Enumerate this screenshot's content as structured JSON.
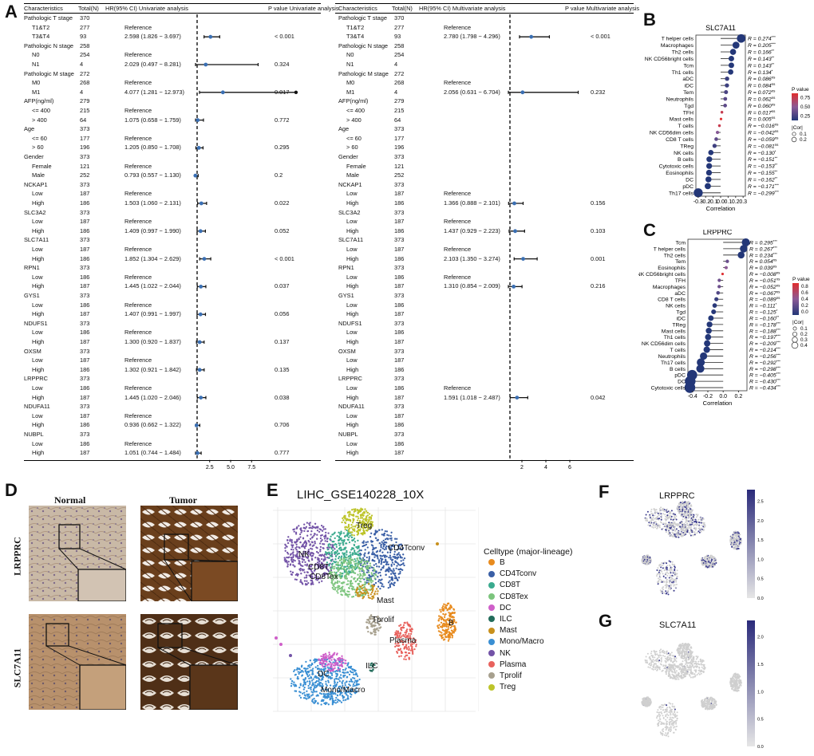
{
  "panels": {
    "A": "A",
    "B": "B",
    "C": "C",
    "D": "D",
    "E": "E",
    "F": "F",
    "G": "G"
  },
  "forest": {
    "uni": {
      "headers": [
        "Characteristics",
        "Total(N)",
        "HR(95% CI) Univariate analysis",
        "P value Univariate analysis"
      ],
      "ticks": [
        "2.5",
        "5.0",
        "7.5"
      ],
      "rows": [
        [
          "Pathologic T stage",
          "370",
          "",
          ""
        ],
        [
          "T1&T2",
          "277",
          "Reference",
          ""
        ],
        [
          "T3&T4",
          "93",
          "2.598 (1.826 − 3.697)",
          "< 0.001"
        ],
        [
          "Pathologic N stage",
          "258",
          "",
          ""
        ],
        [
          "N0",
          "254",
          "Reference",
          ""
        ],
        [
          "N1",
          "4",
          "2.029 (0.497 − 8.281)",
          "0.324"
        ],
        [
          "Pathologic M stage",
          "272",
          "",
          ""
        ],
        [
          "M0",
          "268",
          "Reference",
          ""
        ],
        [
          "M1",
          "4",
          "4.077 (1.281 − 12.973)",
          "0.017"
        ],
        [
          "AFP(ng/ml)",
          "279",
          "",
          ""
        ],
        [
          "<= 400",
          "215",
          "Reference",
          ""
        ],
        [
          "> 400",
          "64",
          "1.075 (0.658 − 1.759)",
          "0.772"
        ],
        [
          "Age",
          "373",
          "",
          ""
        ],
        [
          "<= 60",
          "177",
          "Reference",
          ""
        ],
        [
          "> 60",
          "196",
          "1.205 (0.850 − 1.708)",
          "0.295"
        ],
        [
          "Gender",
          "373",
          "",
          ""
        ],
        [
          "Female",
          "121",
          "Reference",
          ""
        ],
        [
          "Male",
          "252",
          "0.793 (0.557 − 1.130)",
          "0.2"
        ],
        [
          "NCKAP1",
          "373",
          "",
          ""
        ],
        [
          "Low",
          "187",
          "Reference",
          ""
        ],
        [
          "High",
          "186",
          "1.503 (1.060 − 2.131)",
          "0.022"
        ],
        [
          "SLC3A2",
          "373",
          "",
          ""
        ],
        [
          "Low",
          "187",
          "Reference",
          ""
        ],
        [
          "High",
          "186",
          "1.409 (0.997 − 1.990)",
          "0.052"
        ],
        [
          "SLC7A11",
          "373",
          "",
          ""
        ],
        [
          "Low",
          "187",
          "Reference",
          ""
        ],
        [
          "High",
          "186",
          "1.852 (1.304 − 2.629)",
          "< 0.001"
        ],
        [
          "RPN1",
          "373",
          "",
          ""
        ],
        [
          "Low",
          "186",
          "Reference",
          ""
        ],
        [
          "High",
          "187",
          "1.445 (1.022 − 2.044)",
          "0.037"
        ],
        [
          "GYS1",
          "373",
          "",
          ""
        ],
        [
          "Low",
          "186",
          "Reference",
          ""
        ],
        [
          "High",
          "187",
          "1.407 (0.991 − 1.997)",
          "0.056"
        ],
        [
          "NDUFS1",
          "373",
          "",
          ""
        ],
        [
          "Low",
          "186",
          "Reference",
          ""
        ],
        [
          "High",
          "187",
          "1.300 (0.920 − 1.837)",
          "0.137"
        ],
        [
          "OXSM",
          "373",
          "",
          ""
        ],
        [
          "Low",
          "187",
          "Reference",
          ""
        ],
        [
          "High",
          "186",
          "1.302 (0.921 − 1.842)",
          "0.135"
        ],
        [
          "LRPPRC",
          "373",
          "",
          ""
        ],
        [
          "Low",
          "186",
          "Reference",
          ""
        ],
        [
          "High",
          "187",
          "1.445 (1.020 − 2.046)",
          "0.038"
        ],
        [
          "NDUFA11",
          "373",
          "",
          ""
        ],
        [
          "Low",
          "187",
          "Reference",
          ""
        ],
        [
          "High",
          "186",
          "0.936 (0.662 − 1.322)",
          "0.706"
        ],
        [
          "NUBPL",
          "373",
          "",
          ""
        ],
        [
          "Low",
          "186",
          "Reference",
          ""
        ],
        [
          "High",
          "187",
          "1.051 (0.744 − 1.484)",
          "0.777"
        ]
      ]
    },
    "multi": {
      "headers": [
        "Characteristics",
        "Total(N)",
        "HR(95% CI) Multivariate analysis",
        "P value Multivariate analysis"
      ],
      "ticks": [
        "2",
        "4",
        "6"
      ],
      "rows": [
        [
          "Pathologic T stage",
          "370",
          "",
          ""
        ],
        [
          "T1&T2",
          "277",
          "Reference",
          ""
        ],
        [
          "T3&T4",
          "93",
          "2.780 (1.798 − 4.296)",
          "< 0.001"
        ],
        [
          "Pathologic N stage",
          "258",
          "",
          ""
        ],
        [
          "N0",
          "254",
          "",
          ""
        ],
        [
          "N1",
          "4",
          "",
          ""
        ],
        [
          "Pathologic M stage",
          "272",
          "",
          ""
        ],
        [
          "M0",
          "268",
          "Reference",
          ""
        ],
        [
          "M1",
          "4",
          "2.056 (0.631 − 6.704)",
          "0.232"
        ],
        [
          "AFP(ng/ml)",
          "279",
          "",
          ""
        ],
        [
          "<= 400",
          "215",
          "",
          ""
        ],
        [
          "> 400",
          "64",
          "",
          ""
        ],
        [
          "Age",
          "373",
          "",
          ""
        ],
        [
          "<= 60",
          "177",
          "",
          ""
        ],
        [
          "> 60",
          "196",
          "",
          ""
        ],
        [
          "Gender",
          "373",
          "",
          ""
        ],
        [
          "Female",
          "121",
          "",
          ""
        ],
        [
          "Male",
          "252",
          "",
          ""
        ],
        [
          "NCKAP1",
          "373",
          "",
          ""
        ],
        [
          "Low",
          "187",
          "Reference",
          ""
        ],
        [
          "High",
          "186",
          "1.366 (0.888 − 2.101)",
          "0.156"
        ],
        [
          "SLC3A2",
          "373",
          "",
          ""
        ],
        [
          "Low",
          "187",
          "Reference",
          ""
        ],
        [
          "High",
          "186",
          "1.437 (0.929 − 2.223)",
          "0.103"
        ],
        [
          "SLC7A11",
          "373",
          "",
          ""
        ],
        [
          "Low",
          "187",
          "Reference",
          ""
        ],
        [
          "High",
          "186",
          "2.103 (1.350 − 3.274)",
          "0.001"
        ],
        [
          "RPN1",
          "373",
          "",
          ""
        ],
        [
          "Low",
          "186",
          "Reference",
          ""
        ],
        [
          "High",
          "187",
          "1.310 (0.854 − 2.009)",
          "0.216"
        ],
        [
          "GYS1",
          "373",
          "",
          ""
        ],
        [
          "Low",
          "186",
          "",
          ""
        ],
        [
          "High",
          "187",
          "",
          ""
        ],
        [
          "NDUFS1",
          "373",
          "",
          ""
        ],
        [
          "Low",
          "186",
          "",
          ""
        ],
        [
          "High",
          "187",
          "",
          ""
        ],
        [
          "OXSM",
          "373",
          "",
          ""
        ],
        [
          "Low",
          "187",
          "",
          ""
        ],
        [
          "High",
          "186",
          "",
          ""
        ],
        [
          "LRPPRC",
          "373",
          "",
          ""
        ],
        [
          "Low",
          "186",
          "Reference",
          ""
        ],
        [
          "High",
          "187",
          "1.591 (1.018 − 2.487)",
          "0.042"
        ],
        [
          "NDUFA11",
          "373",
          "",
          ""
        ],
        [
          "Low",
          "187",
          "",
          ""
        ],
        [
          "High",
          "186",
          "",
          ""
        ],
        [
          "NUBPL",
          "373",
          "",
          ""
        ],
        [
          "Low",
          "186",
          "",
          ""
        ],
        [
          "High",
          "187",
          "",
          ""
        ]
      ]
    }
  },
  "ihc": {
    "col1": "Normal",
    "col2": "Tumor",
    "row1": "LRPPRC",
    "row2": "SLC7A11"
  },
  "umap": {
    "title": "LIHC_GSE140228_10X",
    "legend_title": "Celltype (major-lineage)",
    "celltypes": [
      {
        "name": "B",
        "color": "#E88B1E"
      },
      {
        "name": "CD4Tconv",
        "color": "#3A5FA6"
      },
      {
        "name": "CD8T",
        "color": "#3AAA8E"
      },
      {
        "name": "CD8Tex",
        "color": "#7CC47D"
      },
      {
        "name": "DC",
        "color": "#CF5FC9"
      },
      {
        "name": "ILC",
        "color": "#236C5B"
      },
      {
        "name": "Mast",
        "color": "#C8901C"
      },
      {
        "name": "Mono/Macro",
        "color": "#3A8FD3"
      },
      {
        "name": "NK",
        "color": "#7353A7"
      },
      {
        "name": "Plasma",
        "color": "#E8625D"
      },
      {
        "name": "Tprolif",
        "color": "#A7A08E"
      },
      {
        "name": "Treg",
        "color": "#BDC42A"
      }
    ],
    "cluster_labels": [
      "Treg",
      "NK",
      "CD4Tconv",
      "CD8T",
      "CD8Tex",
      "Mast",
      "B",
      "Tprolif",
      "Plasma",
      "DC",
      "ILC",
      "Mono/Macro"
    ]
  },
  "featureplots": {
    "f_title": "LRPPRC",
    "f_ticks": [
      "0.0",
      "0.5",
      "1.0",
      "1.5",
      "2.0",
      "2.5"
    ],
    "g_title": "SLC7A11",
    "g_ticks": [
      "0.0",
      "0.5",
      "1.0",
      "1.5",
      "2.0"
    ]
  },
  "chart_data": [
    {
      "type": "scatter",
      "title": "SLC7A11",
      "xlabel": "Correlation",
      "ylabel": "",
      "xlim": [
        -0.33,
        0.33
      ],
      "xticks": [
        "-0.3",
        "-0.2",
        "-0.1",
        "0.0",
        "0.1",
        "0.2",
        "0.3"
      ],
      "legend_pv": {
        "title": "P value",
        "ticks": [
          "0.75",
          "0.50",
          "0.25"
        ]
      },
      "legend_cor": {
        "title": "|Cor|",
        "ticks": [
          "0.1",
          "0.2"
        ]
      },
      "points": [
        {
          "cell": "T helper cells",
          "r": 0.274,
          "p": 0.0001,
          "sig": "***",
          "label": "R = 0.274"
        },
        {
          "cell": "Macrophages",
          "r": 0.205,
          "p": 0.0001,
          "sig": "***",
          "label": "R = 0.205"
        },
        {
          "cell": "Th2 cells",
          "r": 0.166,
          "p": 0.001,
          "sig": "**",
          "label": "R = 0.166"
        },
        {
          "cell": "NK CD56bright cells",
          "r": 0.143,
          "p": 0.006,
          "sig": "**",
          "label": "R = 0.143"
        },
        {
          "cell": "Tcm",
          "r": 0.143,
          "p": 0.006,
          "sig": "**",
          "label": "R = 0.143"
        },
        {
          "cell": "Th1 cells",
          "r": 0.134,
          "p": 0.01,
          "sig": "*",
          "label": "R = 0.134"
        },
        {
          "cell": "aDC",
          "r": 0.086,
          "p": 0.1,
          "sig": "ns",
          "label": "R = 0.086"
        },
        {
          "cell": "iDC",
          "r": 0.084,
          "p": 0.11,
          "sig": "ns",
          "label": "R = 0.084"
        },
        {
          "cell": "Tem",
          "r": 0.072,
          "p": 0.17,
          "sig": "ns",
          "label": "R = 0.072"
        },
        {
          "cell": "Neutrophils",
          "r": 0.062,
          "p": 0.24,
          "sig": "ns",
          "label": "R = 0.062"
        },
        {
          "cell": "Tgd",
          "r": 0.06,
          "p": 0.25,
          "sig": "ns",
          "label": "R = 0.060"
        },
        {
          "cell": "TFH",
          "r": 0.017,
          "p": 0.75,
          "sig": "ns",
          "label": "R = 0.017"
        },
        {
          "cell": "Mast cells",
          "r": 0.005,
          "p": 0.92,
          "sig": "ns",
          "label": "R = 0.005"
        },
        {
          "cell": "T cells",
          "r": -0.016,
          "p": 0.76,
          "sig": "ns",
          "label": "R = −0.016"
        },
        {
          "cell": "NK CD56dim cells",
          "r": -0.042,
          "p": 0.42,
          "sig": "ns",
          "label": "R = −0.042"
        },
        {
          "cell": "CD8 T cells",
          "r": -0.059,
          "p": 0.26,
          "sig": "ns",
          "label": "R = −0.059"
        },
        {
          "cell": "TReg",
          "r": -0.081,
          "p": 0.12,
          "sig": "ns",
          "label": "R = −0.081"
        },
        {
          "cell": "NK cells",
          "r": -0.13,
          "p": 0.012,
          "sig": "*",
          "label": "R = −0.130"
        },
        {
          "cell": "B cells",
          "r": -0.151,
          "p": 0.004,
          "sig": "**",
          "label": "R = −0.151"
        },
        {
          "cell": "Cytotoxic cells",
          "r": -0.153,
          "p": 0.003,
          "sig": "**",
          "label": "R = −0.153"
        },
        {
          "cell": "Eosinophils",
          "r": -0.155,
          "p": 0.003,
          "sig": "**",
          "label": "R = −0.155"
        },
        {
          "cell": "DC",
          "r": -0.162,
          "p": 0.002,
          "sig": "**",
          "label": "R = −0.162"
        },
        {
          "cell": "pDC",
          "r": -0.171,
          "p": 0.0009,
          "sig": "***",
          "label": "R = −0.171"
        },
        {
          "cell": "Th17 cells",
          "r": -0.299,
          "p": 0.0001,
          "sig": "***",
          "label": "R = −0.299"
        }
      ]
    },
    {
      "type": "scatter",
      "title": "LRPPRC",
      "xlabel": "Correlation",
      "ylabel": "",
      "xlim": [
        -0.46,
        0.31
      ],
      "xticks": [
        "-0.4",
        "-0.2",
        "0.0",
        "0.2"
      ],
      "legend_pv": {
        "title": "P value",
        "ticks": [
          "0.8",
          "0.6",
          "0.4",
          "0.2",
          "0.0"
        ]
      },
      "legend_cor": {
        "title": "|Cor|",
        "ticks": [
          "0.1",
          "0.2",
          "0.3",
          "0.4"
        ]
      },
      "points": [
        {
          "cell": "Tcm",
          "r": 0.295,
          "p": 0.0001,
          "sig": "***",
          "label": "R = 0.295"
        },
        {
          "cell": "T helper cells",
          "r": 0.267,
          "p": 0.0001,
          "sig": "***",
          "label": "R = 0.267"
        },
        {
          "cell": "Th2 cells",
          "r": 0.234,
          "p": 0.0001,
          "sig": "***",
          "label": "R = 0.234"
        },
        {
          "cell": "Tem",
          "r": 0.054,
          "p": 0.3,
          "sig": "ns",
          "label": "R = 0.054"
        },
        {
          "cell": "Eosinophils",
          "r": 0.039,
          "p": 0.45,
          "sig": "ns",
          "label": "R = 0.039"
        },
        {
          "cell": "NK CD56bright cells",
          "r": -0.008,
          "p": 0.88,
          "sig": "ns",
          "label": "R = −0.008"
        },
        {
          "cell": "TFH",
          "r": -0.051,
          "p": 0.33,
          "sig": "ns",
          "label": "R = −0.051"
        },
        {
          "cell": "Macrophages",
          "r": -0.052,
          "p": 0.32,
          "sig": "ns",
          "label": "R = −0.052"
        },
        {
          "cell": "aDC",
          "r": -0.067,
          "p": 0.2,
          "sig": "ns",
          "label": "R = −0.067"
        },
        {
          "cell": "CD8 T cells",
          "r": -0.089,
          "p": 0.09,
          "sig": "ns",
          "label": "R = −0.089"
        },
        {
          "cell": "NK cells",
          "r": -0.111,
          "p": 0.03,
          "sig": "*",
          "label": "R = −0.111"
        },
        {
          "cell": "Tgd",
          "r": -0.125,
          "p": 0.016,
          "sig": "*",
          "label": "R = −0.125"
        },
        {
          "cell": "iDC",
          "r": -0.16,
          "p": 0.002,
          "sig": "**",
          "label": "R = −0.160"
        },
        {
          "cell": "TReg",
          "r": -0.178,
          "p": 0.0006,
          "sig": "***",
          "label": "R = −0.178"
        },
        {
          "cell": "Mast cells",
          "r": -0.188,
          "p": 0.0003,
          "sig": "***",
          "label": "R = −0.188"
        },
        {
          "cell": "Th1 cells",
          "r": -0.197,
          "p": 0.0001,
          "sig": "***",
          "label": "R = −0.197"
        },
        {
          "cell": "NK CD56dim cells",
          "r": -0.209,
          "p": 0.0001,
          "sig": "***",
          "label": "R = −0.209"
        },
        {
          "cell": "T cells",
          "r": -0.214,
          "p": 0.0001,
          "sig": "***",
          "label": "R = −0.214"
        },
        {
          "cell": "Neutrophils",
          "r": -0.256,
          "p": 0.0001,
          "sig": "***",
          "label": "R = −0.256"
        },
        {
          "cell": "Th17 cells",
          "r": -0.292,
          "p": 0.0001,
          "sig": "***",
          "label": "R = −0.292"
        },
        {
          "cell": "B cells",
          "r": -0.298,
          "p": 0.0001,
          "sig": "***",
          "label": "R = −0.298"
        },
        {
          "cell": "pDC",
          "r": -0.405,
          "p": 0.0001,
          "sig": "***",
          "label": "R = −0.405"
        },
        {
          "cell": "DC",
          "r": -0.43,
          "p": 0.0001,
          "sig": "***",
          "label": "R = −0.430"
        },
        {
          "cell": "Cytotoxic cells",
          "r": -0.434,
          "p": 0.0001,
          "sig": "***",
          "label": "R = −0.434"
        }
      ]
    }
  ]
}
